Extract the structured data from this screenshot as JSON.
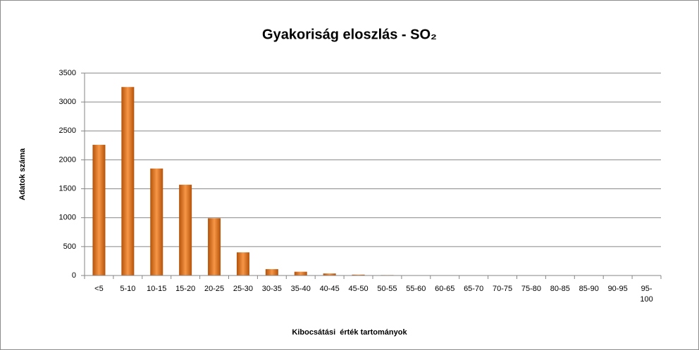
{
  "chart_data": {
    "type": "bar",
    "title": "Gyakoriság eloszlás - SO₂",
    "x_label": "Kibocsátási  érték tartományok",
    "y_label": "Adatok száma",
    "categories": [
      "<5",
      "5-10",
      "10-15",
      "15-20",
      "20-25",
      "25-30",
      "30-35",
      "35-40",
      "40-45",
      "45-50",
      "50-55",
      "55-60",
      "60-65",
      "65-70",
      "70-75",
      "75-80",
      "80-85",
      "85-90",
      "90-95",
      "95-100"
    ],
    "values": [
      2260,
      3260,
      1850,
      1570,
      990,
      400,
      110,
      65,
      35,
      15,
      8,
      5,
      4,
      3,
      3,
      2,
      2,
      2,
      2,
      2
    ],
    "color": "#f79646",
    "ylim": [
      0,
      3500
    ],
    "yticks": [
      0,
      500,
      1000,
      1500,
      2000,
      2500,
      3000,
      3500
    ],
    "grid": true
  }
}
